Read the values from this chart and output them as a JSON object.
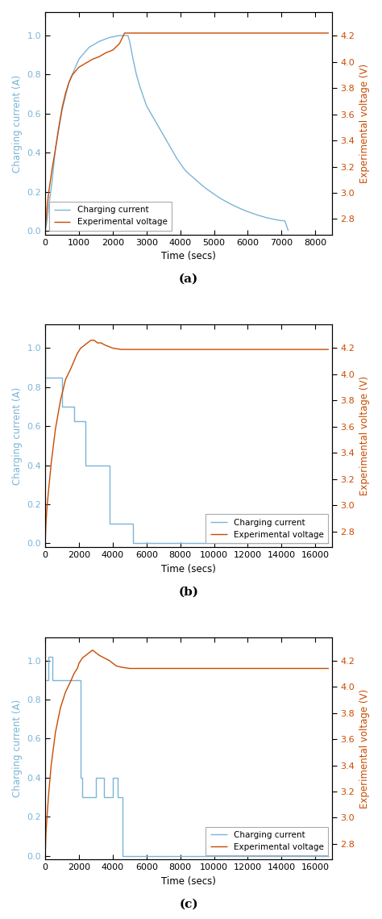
{
  "fig_width": 4.74,
  "fig_height": 11.39,
  "dpi": 100,
  "subplots": [
    {
      "label": "(a)",
      "xlim": [
        0,
        8500
      ],
      "xticks": [
        0,
        1000,
        2000,
        3000,
        4000,
        5000,
        6000,
        7000,
        8000
      ],
      "ylim_left": [
        -0.02,
        1.12
      ],
      "yticks_left": [
        0,
        0.2,
        0.4,
        0.6,
        0.8,
        1.0
      ],
      "ylim_right": [
        2.68,
        4.38
      ],
      "yticks_right": [
        2.8,
        3.0,
        3.2,
        3.4,
        3.6,
        3.8,
        4.0,
        4.2
      ],
      "xlabel": "Time (secs)",
      "ylabel_left": "Charging current (A)",
      "ylabel_right": "Experimental voltage (V)",
      "current_color": "#7ab4d8",
      "voltage_color": "#c84b00",
      "current_x": [
        0,
        50,
        100,
        200,
        300,
        500,
        700,
        1000,
        1300,
        1600,
        1900,
        2200,
        2400,
        2450,
        2500,
        2600,
        2700,
        2800,
        2900,
        3000,
        3100,
        3200,
        3300,
        3400,
        3500,
        3600,
        3700,
        3800,
        3900,
        4000,
        4100,
        4200,
        4300,
        4400,
        4500,
        4600,
        4700,
        4800,
        4900,
        5000,
        5100,
        5200,
        5300,
        5400,
        5500,
        5600,
        5700,
        5800,
        5900,
        6000,
        6100,
        6200,
        6300,
        6400,
        6500,
        6600,
        6700,
        6800,
        6900,
        7000,
        7050,
        7100,
        7200
      ],
      "current_y": [
        0.0,
        0.05,
        0.12,
        0.25,
        0.42,
        0.62,
        0.76,
        0.88,
        0.94,
        0.97,
        0.99,
        1.0,
        1.0,
        1.0,
        0.97,
        0.88,
        0.8,
        0.74,
        0.69,
        0.64,
        0.61,
        0.58,
        0.55,
        0.52,
        0.49,
        0.46,
        0.43,
        0.4,
        0.37,
        0.345,
        0.32,
        0.3,
        0.285,
        0.27,
        0.255,
        0.24,
        0.225,
        0.212,
        0.2,
        0.188,
        0.176,
        0.165,
        0.155,
        0.146,
        0.136,
        0.128,
        0.12,
        0.112,
        0.105,
        0.098,
        0.092,
        0.086,
        0.08,
        0.075,
        0.07,
        0.065,
        0.062,
        0.058,
        0.055,
        0.052,
        0.052,
        0.05,
        0.0
      ],
      "voltage_x": [
        0,
        50,
        100,
        200,
        300,
        400,
        500,
        600,
        700,
        800,
        1000,
        1200,
        1400,
        1600,
        1800,
        2000,
        2200,
        2350,
        2450,
        8400
      ],
      "voltage_y": [
        2.72,
        2.88,
        3.0,
        3.18,
        3.33,
        3.5,
        3.65,
        3.76,
        3.84,
        3.9,
        3.96,
        3.99,
        4.02,
        4.04,
        4.07,
        4.09,
        4.14,
        4.22,
        4.22,
        4.22
      ],
      "legend_loc": "lower left"
    },
    {
      "label": "(b)",
      "xlim": [
        0,
        17000
      ],
      "xticks": [
        0,
        2000,
        4000,
        6000,
        8000,
        10000,
        12000,
        14000,
        16000
      ],
      "ylim_left": [
        -0.02,
        1.12
      ],
      "yticks_left": [
        0,
        0.2,
        0.4,
        0.6,
        0.8,
        1.0
      ],
      "ylim_right": [
        2.68,
        4.38
      ],
      "yticks_right": [
        2.8,
        3.0,
        3.2,
        3.4,
        3.6,
        3.8,
        4.0,
        4.2
      ],
      "xlabel": "Time (secs)",
      "ylabel_left": "Charging current (A)",
      "ylabel_right": "Experimental voltage (V)",
      "current_color": "#7ab4d8",
      "voltage_color": "#c84b00",
      "current_x": [
        0,
        10,
        10,
        1000,
        1000,
        1000,
        1700,
        1700,
        2400,
        2400,
        3100,
        3100,
        3800,
        3800,
        4500,
        4500,
        5200,
        5200,
        5500,
        5500,
        5700,
        5700,
        16800
      ],
      "current_y": [
        1.0,
        1.0,
        0.85,
        0.85,
        0.85,
        0.7,
        0.7,
        0.625,
        0.625,
        0.4,
        0.4,
        0.4,
        0.4,
        0.1,
        0.1,
        0.1,
        0.1,
        0.0,
        0.0,
        0.0,
        0.0,
        0.0,
        0.0
      ],
      "voltage_x": [
        0,
        40,
        100,
        200,
        350,
        600,
        900,
        1200,
        1500,
        1700,
        1900,
        2100,
        2300,
        2500,
        2700,
        2900,
        3100,
        3300,
        3600,
        4000,
        4500,
        5000,
        5500,
        6000,
        7000,
        8000,
        16800
      ],
      "voltage_y": [
        2.72,
        2.86,
        2.98,
        3.12,
        3.32,
        3.58,
        3.8,
        3.96,
        4.04,
        4.1,
        4.16,
        4.2,
        4.22,
        4.24,
        4.26,
        4.26,
        4.24,
        4.24,
        4.22,
        4.2,
        4.19,
        4.19,
        4.19,
        4.19,
        4.19,
        4.19,
        4.19
      ],
      "legend_loc": "lower right"
    },
    {
      "label": "(c)",
      "xlim": [
        0,
        17000
      ],
      "xticks": [
        0,
        2000,
        4000,
        6000,
        8000,
        10000,
        12000,
        14000,
        16000
      ],
      "ylim_left": [
        -0.02,
        1.12
      ],
      "yticks_left": [
        0,
        0.2,
        0.4,
        0.6,
        0.8,
        1.0
      ],
      "ylim_right": [
        2.68,
        4.38
      ],
      "yticks_right": [
        2.8,
        3.0,
        3.2,
        3.4,
        3.6,
        3.8,
        4.0,
        4.2
      ],
      "xlabel": "Time (secs)",
      "ylabel_left": "Charging current (A)",
      "ylabel_right": "Experimental voltage (V)",
      "current_color": "#7ab4d8",
      "voltage_color": "#c84b00",
      "current_x": [
        0,
        200,
        200,
        400,
        400,
        2000,
        2000,
        2100,
        2100,
        2200,
        2200,
        3000,
        3000,
        3500,
        3500,
        4000,
        4000,
        4300,
        4300,
        4600,
        4600,
        5500,
        5500,
        5700,
        5700,
        16800
      ],
      "current_y": [
        0.9,
        0.9,
        1.02,
        1.02,
        0.9,
        0.9,
        0.9,
        0.9,
        0.4,
        0.4,
        0.3,
        0.3,
        0.4,
        0.4,
        0.3,
        0.3,
        0.4,
        0.4,
        0.3,
        0.3,
        0.0,
        0.0,
        0.0,
        0.0,
        0.0,
        0.0
      ],
      "voltage_x": [
        0,
        40,
        100,
        200,
        350,
        600,
        900,
        1200,
        1500,
        1700,
        1900,
        2000,
        2200,
        2400,
        2600,
        2800,
        3000,
        3200,
        3500,
        3800,
        4000,
        4200,
        4500,
        5000,
        5500,
        6000,
        7000,
        16800
      ],
      "voltage_y": [
        2.72,
        2.88,
        3.0,
        3.18,
        3.4,
        3.65,
        3.84,
        3.96,
        4.04,
        4.1,
        4.14,
        4.18,
        4.22,
        4.24,
        4.26,
        4.28,
        4.26,
        4.24,
        4.22,
        4.2,
        4.18,
        4.16,
        4.15,
        4.14,
        4.14,
        4.14,
        4.14,
        4.14
      ],
      "legend_loc": "lower right"
    }
  ]
}
